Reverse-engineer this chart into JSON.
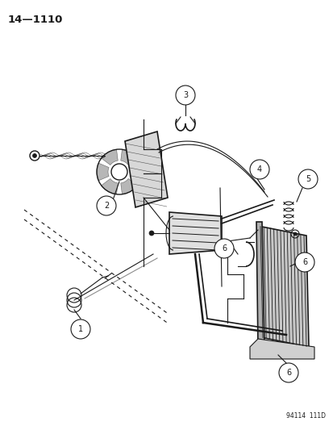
{
  "title": "14—1110",
  "footer": "94114  111D",
  "background_color": "#ffffff",
  "line_color": "#1a1a1a",
  "fig_width": 4.14,
  "fig_height": 5.33,
  "dpi": 100
}
